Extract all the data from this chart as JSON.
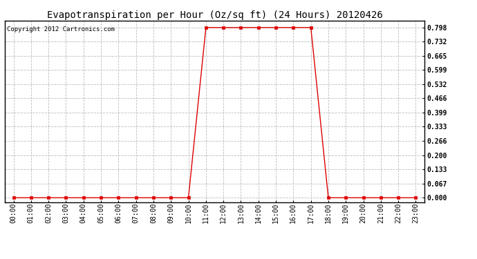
{
  "title": "Evapotranspiration per Hour (Oz/sq ft) (24 Hours) 20120426",
  "copyright": "Copyright 2012 Cartronics.com",
  "x_labels": [
    "00:00",
    "01:00",
    "02:00",
    "03:00",
    "04:00",
    "05:00",
    "06:00",
    "07:00",
    "08:00",
    "09:00",
    "10:00",
    "11:00",
    "12:00",
    "13:00",
    "14:00",
    "15:00",
    "16:00",
    "17:00",
    "18:00",
    "19:00",
    "20:00",
    "21:00",
    "22:00",
    "23:00"
  ],
  "x_values": [
    0,
    1,
    2,
    3,
    4,
    5,
    6,
    7,
    8,
    9,
    10,
    11,
    12,
    13,
    14,
    15,
    16,
    17,
    18,
    19,
    20,
    21,
    22,
    23
  ],
  "y_values": [
    0.0,
    0.0,
    0.0,
    0.0,
    0.0,
    0.0,
    0.0,
    0.0,
    0.0,
    0.0,
    0.0,
    0.798,
    0.798,
    0.798,
    0.798,
    0.798,
    0.798,
    0.798,
    0.0,
    0.0,
    0.0,
    0.0,
    0.0,
    0.0
  ],
  "y_ticks": [
    0.0,
    0.067,
    0.133,
    0.2,
    0.266,
    0.333,
    0.399,
    0.466,
    0.532,
    0.599,
    0.665,
    0.732,
    0.798
  ],
  "y_tick_labels": [
    "0.000",
    "0.067",
    "0.133",
    "0.200",
    "0.266",
    "0.333",
    "0.399",
    "0.466",
    "0.532",
    "0.599",
    "0.665",
    "0.732",
    "0.798"
  ],
  "ylim_min": -0.02,
  "ylim_max": 0.83,
  "line_color": "#dd0000",
  "marker": "s",
  "marker_size": 2.5,
  "grid_color": "#bbbbbb",
  "grid_style": "--",
  "bg_color": "#ffffff",
  "plot_bg_color": "#ffffff",
  "border_color": "#000000",
  "title_fontsize": 10,
  "tick_fontsize": 7,
  "copyright_fontsize": 6.5
}
